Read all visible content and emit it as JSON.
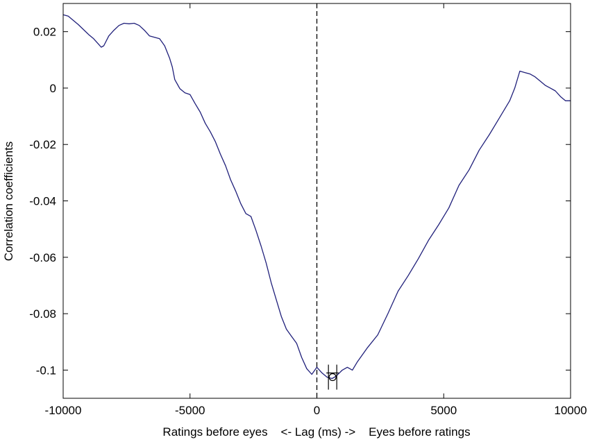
{
  "chart_data": {
    "type": "line",
    "title": "",
    "xlabel": "Ratings before eyes    <- Lag (ms) ->    Eyes before ratings",
    "ylabel": "Correlation coefficients",
    "xlim": [
      -10000,
      10000
    ],
    "ylim": [
      -0.11,
      0.03
    ],
    "x_ticks": [
      -10000,
      -5000,
      0,
      5000,
      10000
    ],
    "x_tick_labels": [
      "-10000",
      "-5000",
      "0",
      "5000",
      "10000"
    ],
    "y_ticks": [
      0.02,
      0,
      -0.02,
      -0.04,
      -0.06,
      -0.08,
      -0.1
    ],
    "y_tick_labels": [
      "0.02",
      "0",
      "-0.02",
      "-0.04",
      "-0.06",
      "-0.08",
      "-0.1"
    ],
    "grid": false,
    "line_color": "#1f1f7a",
    "series": [
      {
        "x": [
          -10000,
          -9800,
          -9400,
          -9000,
          -8800,
          -8600,
          -8500,
          -8400,
          -8200,
          -8000,
          -7800,
          -7600,
          -7400,
          -7200,
          -7000,
          -6800,
          -6600,
          -6400,
          -6200,
          -6000,
          -5800,
          -5700,
          -5600,
          -5400,
          -5200,
          -5000,
          -4800,
          -4600,
          -4400,
          -4200,
          -4000,
          -3800,
          -3600,
          -3400,
          -3200,
          -3000,
          -2800,
          -2600,
          -2400,
          -2200,
          -2000,
          -1800,
          -1600,
          -1400,
          -1200,
          -1000,
          -800,
          -600,
          -400,
          -200,
          0,
          200,
          400,
          600,
          700,
          800,
          1000,
          1200,
          1400,
          1600,
          1800,
          2000,
          2400,
          2800,
          3200,
          3600,
          4000,
          4400,
          4800,
          5200,
          5600,
          6000,
          6400,
          6800,
          7200,
          7600,
          7800,
          8000,
          8200,
          8400,
          8600,
          8800,
          9000,
          9200,
          9400,
          9600,
          9800,
          10000
        ],
        "values": [
          0.026,
          0.0255,
          0.0225,
          0.019,
          0.0175,
          0.0155,
          0.0145,
          0.015,
          0.0185,
          0.0205,
          0.0222,
          0.023,
          0.0228,
          0.023,
          0.0222,
          0.0205,
          0.0185,
          0.018,
          0.0175,
          0.015,
          0.0105,
          0.0075,
          0.003,
          -0.0002,
          -0.0017,
          -0.0023,
          -0.0055,
          -0.0085,
          -0.0125,
          -0.0155,
          -0.019,
          -0.0235,
          -0.0275,
          -0.0325,
          -0.0365,
          -0.041,
          -0.0445,
          -0.0455,
          -0.0505,
          -0.056,
          -0.062,
          -0.069,
          -0.075,
          -0.081,
          -0.0855,
          -0.088,
          -0.0905,
          -0.0955,
          -0.0995,
          -0.1015,
          -0.099,
          -0.101,
          -0.1025,
          -0.103,
          -0.1025,
          -0.1018,
          -0.1,
          -0.099,
          -0.1,
          -0.097,
          -0.0945,
          -0.092,
          -0.0875,
          -0.08,
          -0.072,
          -0.0665,
          -0.0605,
          -0.054,
          -0.0485,
          -0.0425,
          -0.0345,
          -0.029,
          -0.022,
          -0.0165,
          -0.0105,
          -0.0045,
          0.0,
          0.006,
          0.0055,
          0.005,
          0.004,
          0.0025,
          0.001,
          0.0,
          -0.001,
          -0.003,
          -0.0045,
          -0.0045
        ]
      }
    ],
    "reference_lines": [
      {
        "orientation": "vertical",
        "x": 0,
        "style": "dashed"
      }
    ],
    "markers": [
      {
        "shape": "circle",
        "x": 620,
        "y": -0.1025,
        "error_bars": true
      }
    ]
  }
}
